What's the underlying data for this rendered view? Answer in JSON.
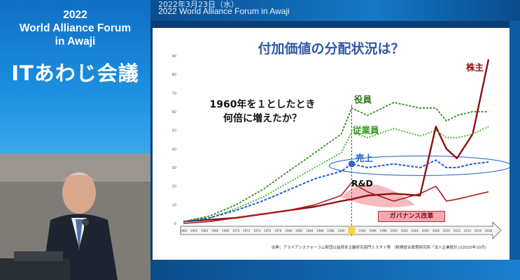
{
  "header": {
    "date": "2022年3月23日（水）",
    "forum_name_en": "2022 World Alliance Forum in Awaji"
  },
  "sidebar": {
    "title_lines": [
      "2022",
      "World  Alliance  Forum",
      "in Awaji"
    ],
    "event_name": "ITあわじ会議"
  },
  "slide": {
    "title": "付加価値の分配状況は？",
    "question_lines": [
      "1960年を１としたとき",
      "何倍に増えたか？"
    ],
    "labels": {
      "shareholders": "株主",
      "executives": "役員",
      "employees": "従業員",
      "sales": "売上",
      "rnd": "R&D",
      "governance": "ガバナンス改革"
    },
    "source": "出典：アライアンスフォーラム財団公益資本主義研究部門ミスタト等　(財務総合政策研究所「法人企業統計」)(2020年10月)",
    "colors": {
      "shareholders": "#8b1010",
      "executives": "#2f8a1f",
      "employees": "#3cb521",
      "sales": "#1c5fd0",
      "rnd": "#b31818",
      "other": "#7a5a1e"
    }
  },
  "chart_data": {
    "type": "line",
    "x": [
      1960,
      1965,
      1970,
      1975,
      1980,
      1985,
      1990,
      1992,
      1995,
      2000,
      2005,
      2008,
      2010,
      2012,
      2015,
      2018
    ],
    "ylim": [
      0,
      90
    ],
    "yticks": [
      0,
      10,
      20,
      30,
      40,
      50,
      60,
      70,
      80,
      90
    ],
    "series": [
      {
        "name": "株主",
        "values": [
          1,
          2,
          3,
          5,
          7,
          9,
          12,
          13,
          15,
          16,
          15,
          52,
          40,
          35,
          48,
          88
        ]
      },
      {
        "name": "役員",
        "values": [
          1,
          4,
          10,
          18,
          28,
          38,
          48,
          62,
          58,
          65,
          62,
          62,
          55,
          58,
          60,
          60
        ]
      },
      {
        "name": "従業員",
        "values": [
          1,
          3,
          8,
          14,
          22,
          30,
          38,
          49,
          46,
          51,
          47,
          50,
          46,
          46,
          48,
          52
        ]
      },
      {
        "name": "売上",
        "values": [
          1,
          3,
          7,
          12,
          18,
          24,
          28,
          32,
          30,
          32,
          30,
          34,
          30,
          30,
          32,
          33
        ]
      },
      {
        "name": "R&D",
        "values": [
          0,
          1,
          3,
          5,
          7,
          10,
          15,
          22,
          17,
          12,
          16,
          20,
          12,
          13,
          15,
          17
        ]
      }
    ]
  }
}
